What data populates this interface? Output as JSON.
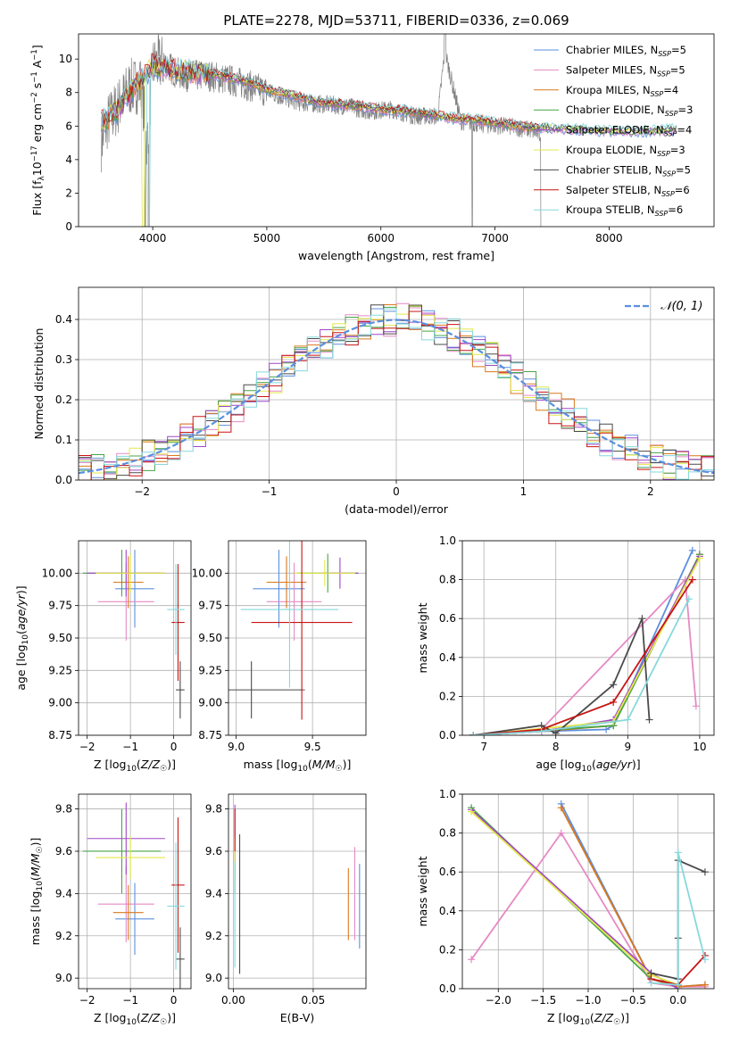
{
  "colors": {
    "Chabrier MILES": "#5b8fde",
    "Salpeter MILES": "#e58ac4",
    "Kroupa MILES": "#d9781c",
    "Chabrier ELODIE": "#47a447",
    "Salpeter ELODIE": "#a046c8",
    "Kroupa ELODIE": "#e3e84a",
    "Chabrier STELIB": "#4a4a4a",
    "Salpeter STELIB": "#c81414",
    "Kroupa STELIB": "#86d8dc",
    "data": "#808080",
    "gauss": "#5b8fde"
  },
  "chart_data": [
    {
      "id": "spectrum",
      "type": "line",
      "title": "PLATE=2278, MJD=53711, FIBERID=0336, z=0.069",
      "xlabel": "wavelength [Angstrom, rest frame]",
      "ylabel": "Flux [fλ10⁻¹⁷ erg cm⁻² s⁻¹ A⁻¹]",
      "xlim": [
        3350,
        8920
      ],
      "ylim": [
        0,
        11.5
      ],
      "xticks": [
        4000,
        5000,
        6000,
        7000,
        8000
      ],
      "yticks": [
        0,
        2,
        4,
        6,
        8,
        10
      ],
      "legend_position": "top-right",
      "legend": [
        "Chabrier MILES, N_SSP=5",
        "Salpeter MILES, N_SSP=5",
        "Kroupa MILES, N_SSP=4",
        "Chabrier ELODIE, N_SSP=3",
        "Salpeter ELODIE, N_SSP=4",
        "Kroupa ELODIE, N_SSP=3",
        "Chabrier STELIB, N_SSP=5",
        "Salpeter STELIB, N_SSP=6",
        "Kroupa STELIB, N_SSP=6"
      ],
      "data_series": {
        "name": "data",
        "x": [
          3550,
          3600,
          3700,
          3800,
          3900,
          3950,
          4000,
          4100,
          4200,
          4300,
          4500,
          4700,
          4900,
          5100,
          5300,
          5500,
          5700,
          5900,
          6100,
          6300,
          6500,
          6560,
          6700,
          6900,
          7100,
          7300,
          7400
        ],
        "y": [
          5.0,
          6.2,
          7.2,
          8.3,
          8.5,
          5.0,
          9.6,
          9.8,
          9.2,
          9.0,
          9.0,
          8.7,
          8.3,
          7.8,
          7.4,
          7.3,
          7.2,
          6.9,
          7.0,
          6.6,
          6.6,
          10.5,
          6.3,
          6.1,
          6.0,
          5.8,
          5.5
        ]
      },
      "models": {
        "x": [
          3550,
          3700,
          3850,
          4000,
          4200,
          4400,
          4600,
          4800,
          5000,
          5200,
          5400,
          5600,
          5800,
          6000,
          6200,
          6400,
          6600,
          6800,
          7000,
          7200,
          7400,
          7700,
          8000,
          8300,
          8600
        ],
        "y": [
          6.2,
          7.0,
          8.5,
          9.6,
          9.3,
          9.2,
          9.0,
          8.7,
          8.2,
          7.9,
          7.5,
          7.3,
          7.2,
          7.0,
          6.9,
          6.7,
          6.5,
          6.4,
          6.2,
          6.0,
          5.9,
          5.8,
          5.7,
          5.7,
          5.8
        ]
      }
    },
    {
      "id": "residuals",
      "type": "histogram",
      "xlabel": "(data-model)/error",
      "ylabel": "Normed distribution",
      "xlim": [
        -2.5,
        2.5
      ],
      "ylim": [
        0,
        0.48
      ],
      "xticks": [
        -2,
        -1,
        0,
        1,
        2
      ],
      "yticks": [
        0.0,
        0.1,
        0.2,
        0.3,
        0.4
      ],
      "legend": [
        "𝒩(0, 1)"
      ],
      "legend_position": "top-right",
      "bin_width": 0.1,
      "reference_curve": "N(0,1)"
    },
    {
      "id": "age-vs-Z",
      "type": "errorbar",
      "xlabel": "Z [log10(Z/Z☉)]",
      "ylabel": "age  [log10(age/yr)]",
      "xlim": [
        -2.2,
        0.4
      ],
      "ylim": [
        8.75,
        10.25
      ],
      "xticks": [
        -2,
        -1,
        0
      ],
      "yticks": [
        8.75,
        9.0,
        9.25,
        9.5,
        9.75,
        10.0
      ],
      "points": [
        {
          "series": "Chabrier MILES",
          "x": -0.9,
          "xerr": 0.45,
          "y": 9.88,
          "yerr": 0.3
        },
        {
          "series": "Salpeter MILES",
          "x": -1.1,
          "xerr": 0.65,
          "y": 9.78,
          "yerr": 0.3
        },
        {
          "series": "Kroupa MILES",
          "x": -1.05,
          "xerr": 0.35,
          "y": 9.93,
          "yerr": 0.2
        },
        {
          "series": "Chabrier ELODIE",
          "x": -1.2,
          "xerr": 0.9,
          "y": 10.0,
          "yerr": 0.18
        },
        {
          "series": "Salpeter ELODIE",
          "x": -1.1,
          "xerr": 0.9,
          "y": 10.0,
          "yerr": 0.18
        },
        {
          "series": "Kroupa ELODIE",
          "x": -1.0,
          "xerr": 0.8,
          "y": 10.0,
          "yerr": 0.15
        },
        {
          "series": "Chabrier STELIB",
          "x": 0.15,
          "xerr": 0.1,
          "y": 9.1,
          "yerr": 0.22
        },
        {
          "series": "Salpeter STELIB",
          "x": 0.1,
          "xerr": 0.15,
          "y": 9.62,
          "yerr": 0.45
        },
        {
          "series": "Kroupa STELIB",
          "x": 0.05,
          "xerr": 0.2,
          "y": 9.72,
          "yerr": 0.35
        }
      ]
    },
    {
      "id": "age-vs-mass",
      "type": "errorbar",
      "xlabel": "mass [log10(M/M☉)]",
      "ylabel": "",
      "xlim": [
        8.95,
        9.85
      ],
      "ylim": [
        8.75,
        10.25
      ],
      "xticks": [
        9.0,
        9.5
      ],
      "yticks": [
        8.75,
        9.0,
        9.25,
        9.5,
        9.75,
        10.0
      ],
      "points": [
        {
          "series": "Chabrier MILES",
          "x": 9.28,
          "xerr": 0.17,
          "y": 9.88,
          "yerr": 0.3
        },
        {
          "series": "Salpeter MILES",
          "x": 9.38,
          "xerr": 0.18,
          "y": 9.78,
          "yerr": 0.3
        },
        {
          "series": "Kroupa MILES",
          "x": 9.33,
          "xerr": 0.13,
          "y": 9.93,
          "yerr": 0.2
        },
        {
          "series": "Chabrier ELODIE",
          "x": 9.6,
          "xerr": 0.2,
          "y": 10.0,
          "yerr": 0.15
        },
        {
          "series": "Salpeter ELODIE",
          "x": 9.68,
          "xerr": 0.12,
          "y": 10.0,
          "yerr": 0.12
        },
        {
          "series": "Kroupa ELODIE",
          "x": 9.58,
          "xerr": 0.2,
          "y": 10.0,
          "yerr": 0.1
        },
        {
          "series": "Chabrier STELIB",
          "x": 9.1,
          "xerr": 0.35,
          "y": 9.1,
          "yerr": 0.22
        },
        {
          "series": "Salpeter STELIB",
          "x": 9.43,
          "xerr": 0.33,
          "y": 9.62,
          "yerr": 0.75
        },
        {
          "series": "Kroupa STELIB",
          "x": 9.35,
          "xerr": 0.32,
          "y": 9.72,
          "yerr": 0.6
        }
      ]
    },
    {
      "id": "weight-vs-age",
      "type": "line",
      "xlabel": "age  [log10(age/yr)]",
      "ylabel": "mass weight",
      "xlim": [
        6.7,
        10.2
      ],
      "ylim": [
        0,
        1.0
      ],
      "xticks": [
        7,
        8,
        9,
        10
      ],
      "yticks": [
        0.0,
        0.2,
        0.4,
        0.6,
        0.8,
        1.0
      ],
      "series": [
        {
          "name": "Chabrier MILES",
          "x": [
            6.85,
            7.8,
            8.7,
            8.8,
            9.9
          ],
          "y": [
            0.0,
            0.02,
            0.03,
            0.05,
            0.95
          ]
        },
        {
          "name": "Salpeter MILES",
          "x": [
            6.85,
            7.8,
            9.8,
            9.95
          ],
          "y": [
            0.0,
            0.03,
            0.8,
            0.15
          ]
        },
        {
          "name": "Kroupa MILES",
          "x": [
            6.85,
            7.8,
            8.8,
            10.0
          ],
          "y": [
            0.0,
            0.02,
            0.05,
            0.93
          ]
        },
        {
          "name": "Chabrier ELODIE",
          "x": [
            6.85,
            8.8,
            10.0
          ],
          "y": [
            0.0,
            0.05,
            0.93
          ]
        },
        {
          "name": "Salpeter ELODIE",
          "x": [
            6.85,
            7.8,
            8.8,
            10.0
          ],
          "y": [
            0.0,
            0.02,
            0.08,
            0.92
          ]
        },
        {
          "name": "Kroupa ELODIE",
          "x": [
            6.85,
            8.8,
            10.0
          ],
          "y": [
            0.0,
            0.07,
            0.91
          ]
        },
        {
          "name": "Chabrier STELIB",
          "x": [
            6.85,
            7.8,
            8.0,
            8.8,
            9.2,
            9.3
          ],
          "y": [
            0.0,
            0.05,
            0.01,
            0.26,
            0.6,
            0.08
          ]
        },
        {
          "name": "Salpeter STELIB",
          "x": [
            6.85,
            7.8,
            8.8,
            9.9
          ],
          "y": [
            0.0,
            0.03,
            0.17,
            0.8
          ]
        },
        {
          "name": "Kroupa STELIB",
          "x": [
            6.85,
            7.8,
            9.0,
            9.85
          ],
          "y": [
            0.0,
            0.02,
            0.08,
            0.7
          ]
        }
      ]
    },
    {
      "id": "mass-vs-Z",
      "type": "errorbar",
      "xlabel": "Z [log10(Z/Z☉)]",
      "ylabel": "mass [log10(M/M☉)]",
      "xlim": [
        -2.2,
        0.4
      ],
      "ylim": [
        8.95,
        9.87
      ],
      "xticks": [
        -2,
        -1,
        0
      ],
      "yticks": [
        9.0,
        9.2,
        9.4,
        9.6,
        9.8
      ],
      "points": [
        {
          "series": "Chabrier MILES",
          "x": -0.9,
          "xerr": 0.45,
          "y": 9.28,
          "yerr": 0.17
        },
        {
          "series": "Salpeter MILES",
          "x": -1.1,
          "xerr": 0.65,
          "y": 9.35,
          "yerr": 0.18
        },
        {
          "series": "Kroupa MILES",
          "x": -1.05,
          "xerr": 0.35,
          "y": 9.31,
          "yerr": 0.13
        },
        {
          "series": "Chabrier ELODIE",
          "x": -1.2,
          "xerr": 0.9,
          "y": 9.6,
          "yerr": 0.2
        },
        {
          "series": "Salpeter ELODIE",
          "x": -1.1,
          "xerr": 0.9,
          "y": 9.66,
          "yerr": 0.17
        },
        {
          "series": "Kroupa ELODIE",
          "x": -1.0,
          "xerr": 0.8,
          "y": 9.57,
          "yerr": 0.1
        },
        {
          "series": "Chabrier STELIB",
          "x": 0.15,
          "xerr": 0.1,
          "y": 9.09,
          "yerr": 0.15
        },
        {
          "series": "Salpeter STELIB",
          "x": 0.1,
          "xerr": 0.15,
          "y": 9.44,
          "yerr": 0.32
        },
        {
          "series": "Kroupa STELIB",
          "x": 0.05,
          "xerr": 0.2,
          "y": 9.34,
          "yerr": 0.3
        }
      ]
    },
    {
      "id": "mass-vs-ebv",
      "type": "errorbar",
      "xlabel": "E(B-V)",
      "ylabel": "",
      "xlim": [
        -0.003,
        0.083
      ],
      "ylim": [
        8.95,
        9.87
      ],
      "xticks": [
        0.0,
        0.05
      ],
      "yticks": [
        9.0,
        9.2,
        9.4,
        9.6,
        9.8
      ],
      "points": [
        {
          "series": "Chabrier MILES",
          "x": 0.079,
          "xerr": 0,
          "y": 9.34,
          "yerr": 0.2
        },
        {
          "series": "Salpeter MILES",
          "x": 0.076,
          "xerr": 0,
          "y": 9.4,
          "yerr": 0.22
        },
        {
          "series": "Kroupa MILES",
          "x": 0.072,
          "xerr": 0,
          "y": 9.35,
          "yerr": 0.17
        },
        {
          "series": "Chabrier ELODIE",
          "x": 0.001,
          "xerr": 0,
          "y": 9.6,
          "yerr": 0.2
        },
        {
          "series": "Salpeter ELODIE",
          "x": 0.001,
          "xerr": 0,
          "y": 9.65,
          "yerr": 0.17
        },
        {
          "series": "Kroupa ELODIE",
          "x": 0.001,
          "xerr": 0,
          "y": 9.57,
          "yerr": 0.1
        },
        {
          "series": "Chabrier STELIB",
          "x": 0.004,
          "xerr": 0,
          "y": 9.35,
          "yerr": 0.33
        },
        {
          "series": "Salpeter STELIB",
          "x": 0.001,
          "xerr": 0,
          "y": 9.7,
          "yerr": 0.1
        },
        {
          "series": "Kroupa STELIB",
          "x": 0.001,
          "xerr": 0,
          "y": 9.3,
          "yerr": 0.25
        }
      ]
    },
    {
      "id": "weight-vs-Z",
      "type": "line",
      "xlabel": "Z [log10(Z/Z☉)]",
      "ylabel": "mass weight",
      "xlim": [
        -2.4,
        0.4
      ],
      "ylim": [
        0,
        1.0
      ],
      "xticks": [
        -2.0,
        -1.5,
        -1.0,
        -0.5,
        0.0
      ],
      "yticks": [
        0.0,
        0.2,
        0.4,
        0.6,
        0.8,
        1.0
      ],
      "series": [
        {
          "name": "Chabrier MILES",
          "x": [
            -1.3,
            -0.3,
            0.0,
            0.3
          ],
          "y": [
            0.95,
            0.05,
            0.01,
            0.02
          ]
        },
        {
          "name": "Salpeter MILES",
          "x": [
            -2.3,
            -1.3,
            -0.3,
            0.0,
            0.3
          ],
          "y": [
            0.15,
            0.8,
            0.03,
            0.01,
            0.01
          ]
        },
        {
          "name": "Kroupa MILES",
          "x": [
            -1.3,
            -0.3,
            0.0,
            0.3
          ],
          "y": [
            0.93,
            0.05,
            0.01,
            0.02
          ]
        },
        {
          "name": "Chabrier ELODIE",
          "x": [
            -2.3,
            -0.3,
            0.0
          ],
          "y": [
            0.93,
            0.05,
            0.02
          ]
        },
        {
          "name": "Salpeter ELODIE",
          "x": [
            -2.3,
            -0.3,
            0.0
          ],
          "y": [
            0.92,
            0.08,
            0.0
          ]
        },
        {
          "name": "Kroupa ELODIE",
          "x": [
            -2.3,
            -0.3,
            0.0
          ],
          "y": [
            0.91,
            0.07,
            0.02
          ]
        },
        {
          "name": "Chabrier STELIB",
          "x": [
            -0.3,
            0.0,
            0.0,
            0.0,
            0.3
          ],
          "y": [
            0.08,
            0.05,
            0.26,
            0.66,
            0.6
          ]
        },
        {
          "name": "Salpeter STELIB",
          "x": [
            -0.3,
            0.0,
            0.3
          ],
          "y": [
            0.05,
            0.02,
            0.17
          ]
        },
        {
          "name": "Kroupa STELIB",
          "x": [
            -0.3,
            0.0,
            0.0,
            0.3
          ],
          "y": [
            0.03,
            0.02,
            0.7,
            0.15
          ]
        }
      ]
    }
  ]
}
